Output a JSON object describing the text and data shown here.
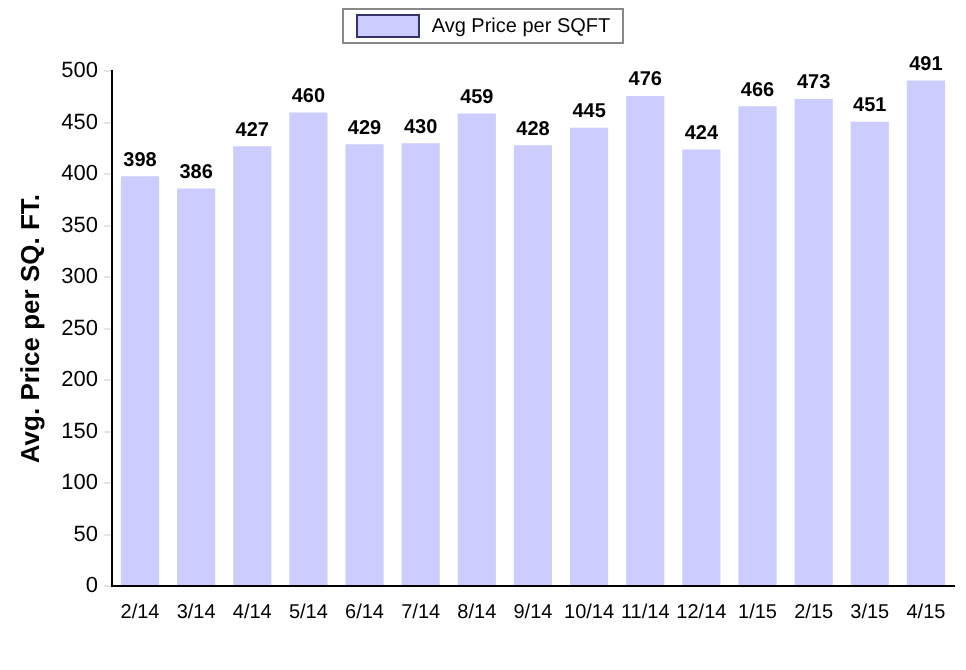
{
  "chart_data": {
    "type": "bar",
    "ylabel": "Avg. Price per SQ. FT.",
    "categories": [
      "2/14",
      "3/14",
      "4/14",
      "5/14",
      "6/14",
      "7/14",
      "8/14",
      "9/14",
      "10/14",
      "11/14",
      "12/14",
      "1/15",
      "2/15",
      "3/15",
      "4/15"
    ],
    "series": [
      {
        "name": "Avg Price per SQFT",
        "color": "#ccccff",
        "values": [
          398,
          386,
          427,
          460,
          429,
          430,
          459,
          428,
          445,
          476,
          424,
          466,
          473,
          451,
          491
        ]
      }
    ],
    "ylim": [
      0,
      500
    ],
    "yticks": [
      0,
      50,
      100,
      150,
      200,
      250,
      300,
      350,
      400,
      450,
      500
    ],
    "data_labels": true,
    "legend": "top",
    "grid": false
  }
}
